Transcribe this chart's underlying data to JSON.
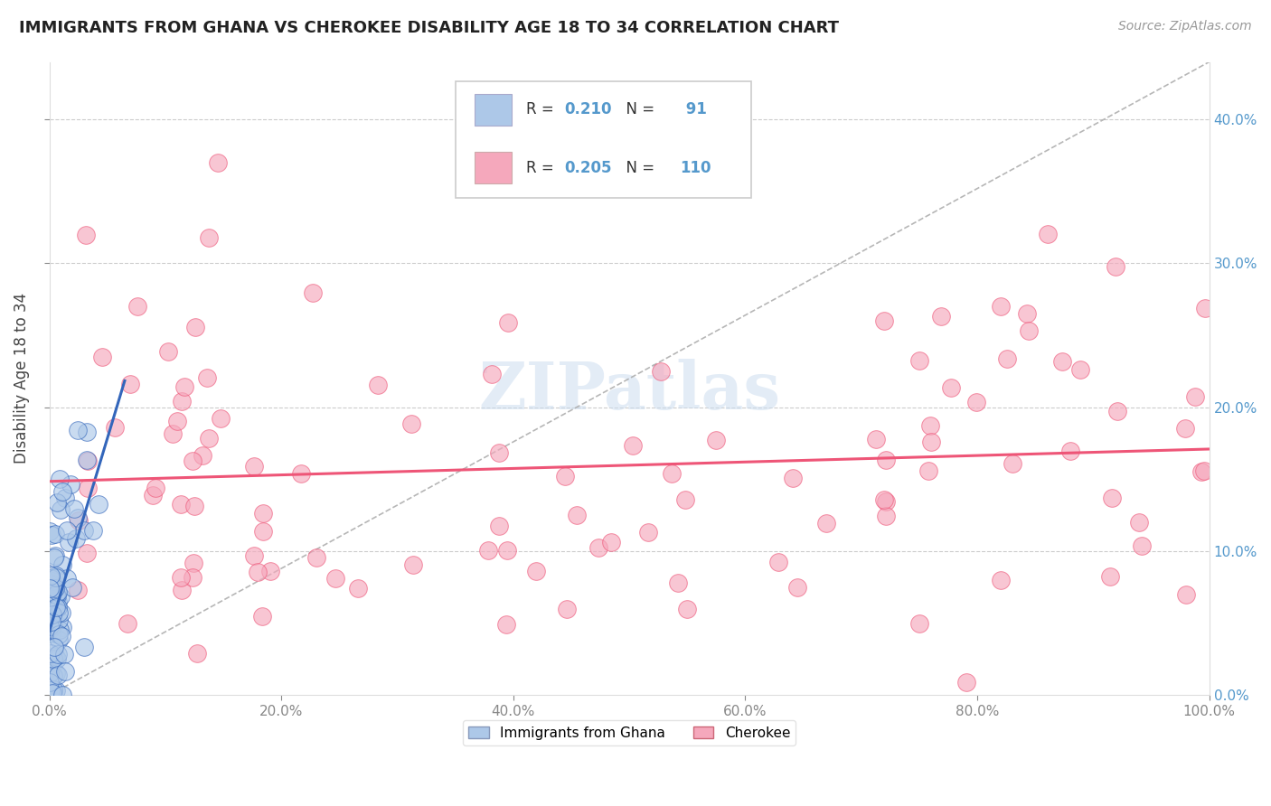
{
  "title": "IMMIGRANTS FROM GHANA VS CHEROKEE DISABILITY AGE 18 TO 34 CORRELATION CHART",
  "source": "Source: ZipAtlas.com",
  "ylabel": "Disability Age 18 to 34",
  "legend_label_1": "Immigrants from Ghana",
  "legend_label_2": "Cherokee",
  "R1": 0.21,
  "N1": 91,
  "R2": 0.205,
  "N2": 110,
  "color1": "#adc8e8",
  "color2": "#f5a8bc",
  "trendline1_color": "#3366bb",
  "trendline2_color": "#ee5577",
  "watermark": "ZIPatlas",
  "xlim": [
    0.0,
    1.0
  ],
  "ylim": [
    0.0,
    0.44
  ],
  "x_ticks": [
    0.0,
    0.2,
    0.4,
    0.6,
    0.8,
    1.0
  ],
  "x_tick_labels": [
    "0.0%",
    "20.0%",
    "40.0%",
    "60.0%",
    "80.0%",
    "100.0%"
  ],
  "y_ticks": [
    0.0,
    0.1,
    0.2,
    0.3,
    0.4
  ],
  "y_tick_labels": [
    "0.0%",
    "10.0%",
    "20.0%",
    "30.0%",
    "40.0%"
  ],
  "tick_color": "#5599cc",
  "title_fontsize": 13,
  "label_fontsize": 11
}
